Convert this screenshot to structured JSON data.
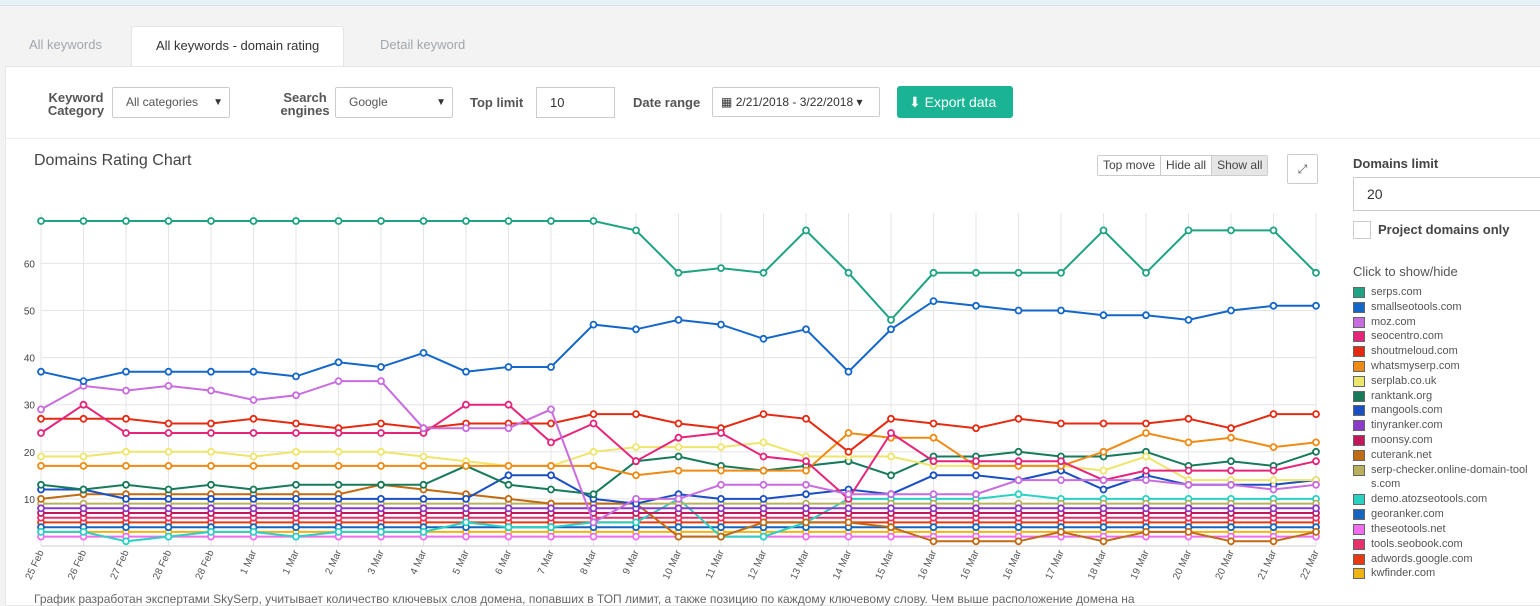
{
  "tabs": [
    {
      "label": "All keywords"
    },
    {
      "label": "All keywords - domain rating"
    },
    {
      "label": "Detail keyword"
    }
  ],
  "filters": {
    "category_label": "Keyword Category",
    "category_value": "All categories",
    "engine_label": "Search engines",
    "engine_value": "Google",
    "top_limit_label": "Top limit",
    "top_limit_value": "10",
    "date_range_label": "Date range",
    "date_range_value": "2/21/2018 - 3/22/2018",
    "export_label": "Export data"
  },
  "chart_controls": {
    "title": "Domains Rating Chart",
    "top_move": "Top move",
    "hide_all": "Hide all",
    "show_all": "Show all"
  },
  "sidebar": {
    "domains_limit_label": "Domains limit",
    "domains_limit_value": "20",
    "project_only_label": "Project domains only",
    "legend_hint": "Click to show/hide"
  },
  "footer_text": "График разработан экспертами SkySerp, учитывает количество ключевых слов домена, попавших в ТОП лимит, а также позицию по каждому ключевому слову. Чем выше расположение домена на",
  "chart_data": {
    "type": "line",
    "x": [
      "25 Feb",
      "26 Feb",
      "27 Feb",
      "28 Feb",
      "28 Feb",
      "1 Mar",
      "1 Mar",
      "2 Mar",
      "3 Mar",
      "4 Mar",
      "5 Mar",
      "6 Mar",
      "7 Mar",
      "8 Mar",
      "9 Mar",
      "10 Mar",
      "11 Mar",
      "12 Mar",
      "13 Mar",
      "14 Mar",
      "15 Mar",
      "16 Mar",
      "16 Mar",
      "16 Mar",
      "17 Mar",
      "18 Mar",
      "19 Mar",
      "20 Mar",
      "20 Mar",
      "21 Mar",
      "22 Mar"
    ],
    "yticks": [
      10,
      20,
      30,
      40,
      50,
      60
    ],
    "ylim": [
      0,
      70
    ],
    "grid": true,
    "legend_position": "right",
    "series": [
      {
        "name": "serps.com",
        "color": "#1fa382",
        "values": [
          69,
          69,
          69,
          69,
          69,
          69,
          69,
          69,
          69,
          69,
          69,
          69,
          69,
          69,
          67,
          58,
          59,
          58,
          67,
          58,
          48,
          58,
          58,
          58,
          58,
          67,
          58,
          67,
          67,
          67,
          58
        ]
      },
      {
        "name": "smallseotools.com",
        "color": "#1466c8",
        "values": [
          37,
          35,
          37,
          37,
          37,
          37,
          36,
          39,
          38,
          41,
          37,
          38,
          38,
          47,
          46,
          48,
          47,
          44,
          46,
          37,
          46,
          52,
          51,
          50,
          50,
          49,
          49,
          48,
          50,
          51,
          51
        ]
      },
      {
        "name": "moz.com",
        "color": "#c86ce0",
        "values": [
          29,
          34,
          33,
          34,
          33,
          31,
          32,
          35,
          35,
          25,
          25,
          25,
          29,
          5,
          10,
          10,
          13,
          13,
          13,
          11,
          11,
          11,
          11,
          14,
          14,
          14,
          14,
          13,
          13,
          12,
          13
        ]
      },
      {
        "name": "seocentro.com",
        "color": "#e6247a",
        "values": [
          24,
          30,
          24,
          24,
          24,
          24,
          24,
          24,
          24,
          24,
          30,
          30,
          22,
          26,
          18,
          23,
          24,
          19,
          18,
          10,
          24,
          18,
          18,
          18,
          18,
          14,
          16,
          16,
          16,
          16,
          18
        ]
      },
      {
        "name": "shoutmeloud.com",
        "color": "#e52a12",
        "values": [
          27,
          27,
          27,
          26,
          26,
          27,
          26,
          25,
          26,
          25,
          26,
          26,
          26,
          28,
          28,
          26,
          25,
          28,
          27,
          20,
          27,
          26,
          25,
          27,
          26,
          26,
          26,
          27,
          25,
          28,
          28
        ]
      },
      {
        "name": "whatsmyserp.com",
        "color": "#ef8a14",
        "values": [
          17,
          17,
          17,
          17,
          17,
          17,
          17,
          17,
          17,
          17,
          17,
          17,
          17,
          17,
          15,
          16,
          16,
          16,
          16,
          24,
          23,
          23,
          17,
          17,
          17,
          20,
          24,
          22,
          23,
          21,
          22
        ]
      },
      {
        "name": "serplab.co.uk",
        "color": "#eee56c",
        "values": [
          19,
          19,
          20,
          20,
          20,
          19,
          20,
          20,
          20,
          19,
          18,
          17,
          17,
          20,
          21,
          21,
          21,
          22,
          19,
          19,
          19,
          17,
          17,
          17,
          17,
          16,
          19,
          14,
          14,
          14,
          14
        ]
      },
      {
        "name": "ranktank.org",
        "color": "#177a5a",
        "values": [
          13,
          12,
          13,
          12,
          13,
          12,
          13,
          13,
          13,
          13,
          17,
          13,
          12,
          11,
          18,
          19,
          17,
          16,
          17,
          18,
          15,
          19,
          19,
          20,
          19,
          19,
          20,
          17,
          18,
          17,
          20
        ]
      },
      {
        "name": "mangools.com",
        "color": "#1a4fc2",
        "values": [
          12,
          12,
          10,
          10,
          10,
          10,
          10,
          10,
          10,
          10,
          10,
          15,
          15,
          10,
          9,
          11,
          10,
          10,
          11,
          12,
          11,
          15,
          15,
          14,
          16,
          12,
          15,
          13,
          13,
          13,
          14
        ]
      },
      {
        "name": "tinyranker.com",
        "color": "#8b3ac9",
        "values": [
          8,
          8,
          8,
          8,
          8,
          8,
          8,
          8,
          8,
          8,
          8,
          8,
          8,
          8,
          8,
          8,
          8,
          8,
          8,
          8,
          8,
          8,
          8,
          8,
          8,
          8,
          8,
          8,
          8,
          8,
          8
        ]
      },
      {
        "name": "moonsy.com",
        "color": "#c2185b",
        "values": [
          7,
          7,
          7,
          7,
          7,
          7,
          7,
          7,
          7,
          7,
          7,
          7,
          7,
          7,
          7,
          7,
          7,
          7,
          7,
          7,
          7,
          7,
          7,
          7,
          7,
          7,
          7,
          7,
          7,
          7,
          7
        ]
      },
      {
        "name": "cuterank.net",
        "color": "#c06a12",
        "values": [
          10,
          11,
          11,
          11,
          11,
          11,
          11,
          11,
          13,
          12,
          11,
          10,
          9,
          9,
          9,
          2,
          2,
          5,
          5,
          5,
          4,
          1,
          1,
          1,
          3,
          1,
          3,
          3,
          1,
          1,
          3
        ]
      },
      {
        "name": "serp-checker.online-domain-tools.com",
        "color": "#b8b05a",
        "values": [
          9,
          9,
          9,
          9,
          9,
          9,
          9,
          9,
          9,
          9,
          9,
          9,
          9,
          9,
          9,
          9,
          9,
          9,
          9,
          9,
          9,
          9,
          9,
          9,
          9,
          9,
          9,
          9,
          9,
          9,
          9
        ]
      },
      {
        "name": "demo.atozseotools.com",
        "color": "#29d1c2",
        "values": [
          3,
          3,
          1,
          2,
          3,
          3,
          2,
          3,
          3,
          3,
          5,
          4,
          4,
          5,
          5,
          10,
          2,
          2,
          5,
          10,
          10,
          10,
          10,
          11,
          10,
          10,
          10,
          10,
          10,
          10,
          10
        ]
      },
      {
        "name": "georanker.com",
        "color": "#1565c0",
        "values": [
          4,
          4,
          4,
          4,
          4,
          4,
          4,
          4,
          4,
          4,
          4,
          4,
          4,
          4,
          4,
          4,
          4,
          4,
          4,
          4,
          4,
          4,
          4,
          4,
          4,
          4,
          4,
          4,
          4,
          4,
          4
        ]
      },
      {
        "name": "theseotools.net",
        "color": "#f06cf0",
        "values": [
          2,
          2,
          2,
          2,
          2,
          2,
          2,
          2,
          2,
          2,
          2,
          2,
          2,
          2,
          2,
          2,
          2,
          2,
          2,
          2,
          2,
          2,
          2,
          2,
          2,
          2,
          2,
          2,
          2,
          2,
          2
        ]
      },
      {
        "name": "tools.seobook.com",
        "color": "#e8306a",
        "values": [
          6,
          6,
          6,
          6,
          6,
          6,
          6,
          6,
          6,
          6,
          6,
          6,
          6,
          6,
          6,
          6,
          6,
          6,
          6,
          6,
          6,
          6,
          6,
          6,
          6,
          6,
          6,
          6,
          6,
          6,
          6
        ]
      },
      {
        "name": "adwords.google.com",
        "color": "#e83a12",
        "values": [
          5,
          5,
          5,
          5,
          5,
          5,
          5,
          5,
          5,
          5,
          5,
          5,
          5,
          5,
          5,
          5,
          5,
          5,
          5,
          5,
          5,
          5,
          5,
          5,
          5,
          5,
          5,
          5,
          5,
          5,
          5
        ]
      },
      {
        "name": "kwfinder.com",
        "color": "#f0b412",
        "values": [
          3,
          3,
          3,
          3,
          3,
          3,
          3,
          3,
          3,
          3,
          3,
          3,
          3,
          3,
          3,
          3,
          3,
          3,
          3,
          3,
          3,
          3,
          3,
          3,
          3,
          3,
          3,
          3,
          3,
          3,
          3
        ]
      }
    ]
  }
}
